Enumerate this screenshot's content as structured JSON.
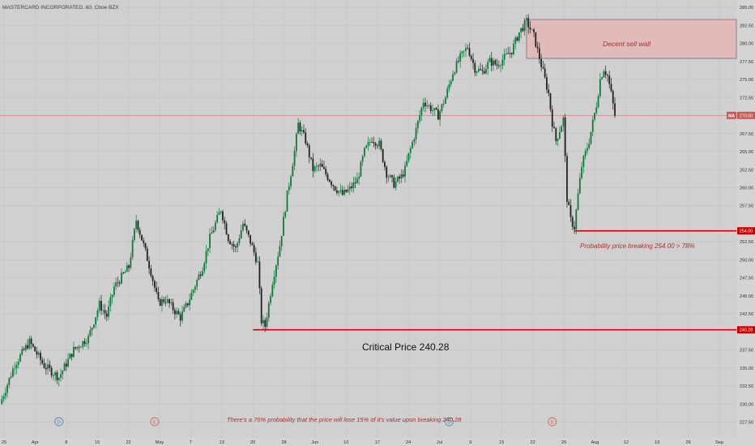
{
  "header": {
    "title": "MASTERCARD INCORPORATED, 60, Cboe BZX"
  },
  "colors": {
    "background": "#d4d4d4",
    "plot_background": "#d0d0d0",
    "grid": "#c2c2c2",
    "candle_up": "#0d7a3a",
    "candle_down": "#222222",
    "support_line": "#cc0000",
    "price_line": "#e07a7a",
    "zone_fill": "#e3b7b5",
    "annotation_text": "#a83030"
  },
  "chart_data": {
    "type": "candlestick",
    "ylim": [
      225.3,
      286
    ],
    "y_ticks": [
      {
        "value": 285,
        "label": "285.00"
      },
      {
        "value": 282.5,
        "label": "282.50"
      },
      {
        "value": 280,
        "label": "280.00"
      },
      {
        "value": 277.5,
        "label": "277.50"
      },
      {
        "value": 275,
        "label": "275.00"
      },
      {
        "value": 272.5,
        "label": "272.50"
      },
      {
        "value": 267.5,
        "label": "267.50"
      },
      {
        "value": 265,
        "label": "265.00"
      },
      {
        "value": 262.5,
        "label": "262.50"
      },
      {
        "value": 260,
        "label": "260.00"
      },
      {
        "value": 257.5,
        "label": "257.50"
      },
      {
        "value": 252.5,
        "label": "252.50"
      },
      {
        "value": 250,
        "label": "250.00"
      },
      {
        "value": 247.5,
        "label": "247.50"
      },
      {
        "value": 245,
        "label": "245.00"
      },
      {
        "value": 242.5,
        "label": "242.50"
      },
      {
        "value": 237.5,
        "label": "237.50"
      },
      {
        "value": 235,
        "label": "235.00"
      },
      {
        "value": 232.5,
        "label": "232.50"
      },
      {
        "value": 230,
        "label": "230.00"
      },
      {
        "value": 227.5,
        "label": "227.50"
      }
    ],
    "x_ticks": [
      "25",
      "Apr",
      "8",
      "15",
      "22",
      "May",
      "7",
      "13",
      "20",
      "28",
      "Jun",
      "10",
      "17",
      "24",
      "Jul",
      "9",
      "15",
      "22",
      "29",
      "Aug",
      "12",
      "19",
      "26",
      "Sep"
    ],
    "series_path": [
      {
        "day": 0,
        "price": 230.0
      },
      {
        "day": 4,
        "price": 235.5
      },
      {
        "day": 8,
        "price": 238.6
      },
      {
        "day": 12,
        "price": 235.3
      },
      {
        "day": 16,
        "price": 233.7
      },
      {
        "day": 20,
        "price": 237.5
      },
      {
        "day": 24,
        "price": 239.2
      },
      {
        "day": 27,
        "price": 243.8
      },
      {
        "day": 29,
        "price": 242.2
      },
      {
        "day": 31,
        "price": 246.2
      },
      {
        "day": 35,
        "price": 249.0
      },
      {
        "day": 37,
        "price": 255.5
      },
      {
        "day": 39,
        "price": 252.0
      },
      {
        "day": 41,
        "price": 248.3
      },
      {
        "day": 43,
        "price": 244.0
      },
      {
        "day": 45,
        "price": 244.5
      },
      {
        "day": 47,
        "price": 243.2
      },
      {
        "day": 49,
        "price": 242.0
      },
      {
        "day": 51,
        "price": 244.0
      },
      {
        "day": 55,
        "price": 249.0
      },
      {
        "day": 57,
        "price": 253.0
      },
      {
        "day": 60,
        "price": 257.0
      },
      {
        "day": 62,
        "price": 253.0
      },
      {
        "day": 64,
        "price": 251.5
      },
      {
        "day": 66,
        "price": 255.0
      },
      {
        "day": 68,
        "price": 252.5
      },
      {
        "day": 70,
        "price": 249.5
      },
      {
        "day": 71,
        "price": 241.5
      },
      {
        "day": 72,
        "price": 240.8
      },
      {
        "day": 74,
        "price": 247.0
      },
      {
        "day": 76,
        "price": 252.0
      },
      {
        "day": 78,
        "price": 259.0
      },
      {
        "day": 80,
        "price": 265.0
      },
      {
        "day": 81,
        "price": 268.8
      },
      {
        "day": 83,
        "price": 266.5
      },
      {
        "day": 85,
        "price": 262.5
      },
      {
        "day": 87,
        "price": 263.0
      },
      {
        "day": 89,
        "price": 261.5
      },
      {
        "day": 91,
        "price": 260.0
      },
      {
        "day": 93,
        "price": 259.0
      },
      {
        "day": 95,
        "price": 259.8
      },
      {
        "day": 97,
        "price": 261.0
      },
      {
        "day": 99,
        "price": 265.0
      },
      {
        "day": 101,
        "price": 266.8
      },
      {
        "day": 103,
        "price": 266.0
      },
      {
        "day": 105,
        "price": 262.0
      },
      {
        "day": 107,
        "price": 260.5
      },
      {
        "day": 109,
        "price": 261.5
      },
      {
        "day": 110,
        "price": 262.5
      },
      {
        "day": 111,
        "price": 264.5
      },
      {
        "day": 113,
        "price": 268.0
      },
      {
        "day": 115,
        "price": 272.0
      },
      {
        "day": 117,
        "price": 271.0
      },
      {
        "day": 119,
        "price": 270.0
      },
      {
        "day": 121,
        "price": 272.5
      },
      {
        "day": 123,
        "price": 276.0
      },
      {
        "day": 125,
        "price": 278.0
      },
      {
        "day": 127,
        "price": 279.5
      },
      {
        "day": 129,
        "price": 276.5
      },
      {
        "day": 131,
        "price": 276.0
      },
      {
        "day": 133,
        "price": 277.5
      },
      {
        "day": 135,
        "price": 277.0
      },
      {
        "day": 137,
        "price": 278.0
      },
      {
        "day": 139,
        "price": 279.0
      },
      {
        "day": 141,
        "price": 281.5
      },
      {
        "day": 143,
        "price": 283.0
      },
      {
        "day": 145,
        "price": 281.0
      },
      {
        "day": 147,
        "price": 277.0
      },
      {
        "day": 149,
        "price": 273.0
      },
      {
        "day": 150,
        "price": 269.0
      },
      {
        "day": 151,
        "price": 266.5
      },
      {
        "day": 152,
        "price": 268.0
      },
      {
        "day": 153,
        "price": 269.5
      },
      {
        "day": 154,
        "price": 258.5
      },
      {
        "day": 155,
        "price": 255.5
      },
      {
        "day": 156,
        "price": 254.5
      },
      {
        "day": 157,
        "price": 259.0
      },
      {
        "day": 158,
        "price": 263.0
      },
      {
        "day": 160,
        "price": 266.5
      },
      {
        "day": 161,
        "price": 269.0
      },
      {
        "day": 162,
        "price": 271.5
      },
      {
        "day": 163,
        "price": 275.0
      },
      {
        "day": 164,
        "price": 276.5
      },
      {
        "day": 165,
        "price": 275.5
      },
      {
        "day": 166,
        "price": 273.0
      },
      {
        "day": 167,
        "price": 270.0
      }
    ],
    "x_day_range": [
      0,
      200
    ],
    "last_price": {
      "value": 270.0,
      "label": "270.00",
      "symbol": "MA"
    },
    "levels": [
      {
        "value": 254.0,
        "label": "254.00",
        "name": "support-254"
      },
      {
        "value": 240.28,
        "label": "240.28",
        "name": "critical-240"
      }
    ],
    "sell_zone": {
      "price_low": 277.9,
      "price_high": 283.3,
      "day_start": 143,
      "day_end": 200,
      "label": "Decent sell wall"
    },
    "annotations": {
      "critical_price": "Critical Price 240.28",
      "probability_254": "Probability price breaking 254.00 > 78%",
      "probability_240": "There's a 76% probability that the price will lose 15% of it's value upon breaking 240.28"
    },
    "event_markers": [
      {
        "day": 16,
        "letter": "D",
        "color": "#5a8fb8"
      },
      {
        "day": 42,
        "letter": "E",
        "color": "#d06a5a"
      },
      {
        "day": 122,
        "letter": "D",
        "color": "#5a8fb8"
      },
      {
        "day": 150,
        "letter": "E",
        "color": "#d06a5a"
      }
    ]
  }
}
